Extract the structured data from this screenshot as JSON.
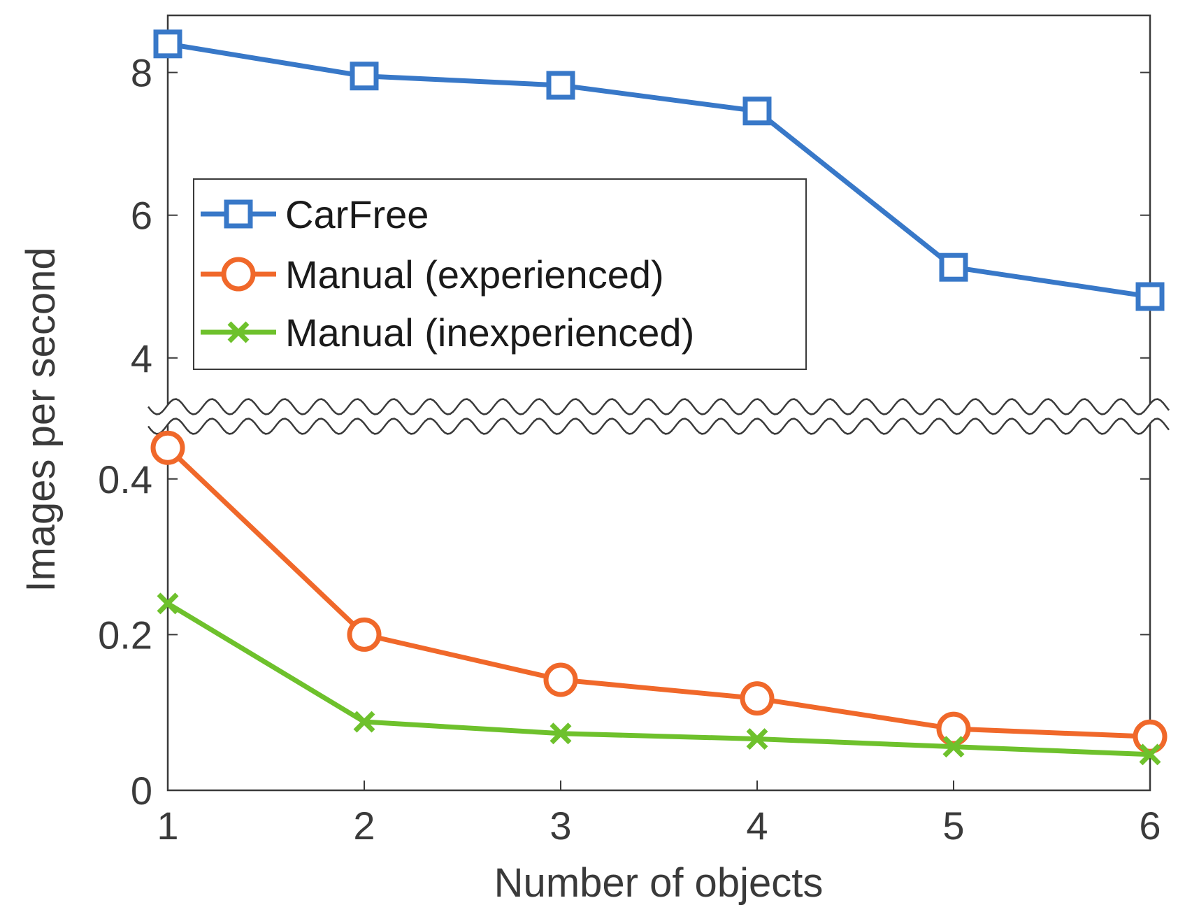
{
  "chart_data": {
    "type": "line",
    "title": "",
    "xlabel": "Number of objects",
    "ylabel": "Images per second",
    "x": [
      1,
      2,
      3,
      4,
      5,
      6
    ],
    "xlim": [
      1,
      6
    ],
    "x_ticks": [
      "1",
      "2",
      "3",
      "4",
      "5",
      "6"
    ],
    "broken_y_axis": true,
    "y_upper_range": [
      3.4,
      8.8
    ],
    "y_upper_ticks": [
      "4",
      "6",
      "8"
    ],
    "y_lower_range": [
      0,
      0.46
    ],
    "y_lower_ticks": [
      "0",
      "0.2",
      "0.4"
    ],
    "grid": false,
    "legend_position": "upper-left",
    "series": [
      {
        "name": "CarFree",
        "marker": "square",
        "color": "#3878c8",
        "segment": "upper",
        "values": [
          8.4,
          7.95,
          7.82,
          7.46,
          5.27,
          4.86
        ]
      },
      {
        "name": "Manual (experienced)",
        "marker": "circle",
        "color": "#f0682a",
        "segment": "lower",
        "values": [
          0.44,
          0.2,
          0.142,
          0.118,
          0.079,
          0.069
        ]
      },
      {
        "name": "Manual (inexperienced)",
        "marker": "x",
        "color": "#6ec12c",
        "segment": "lower",
        "values": [
          0.24,
          0.088,
          0.073,
          0.066,
          0.056,
          0.046
        ]
      }
    ]
  }
}
